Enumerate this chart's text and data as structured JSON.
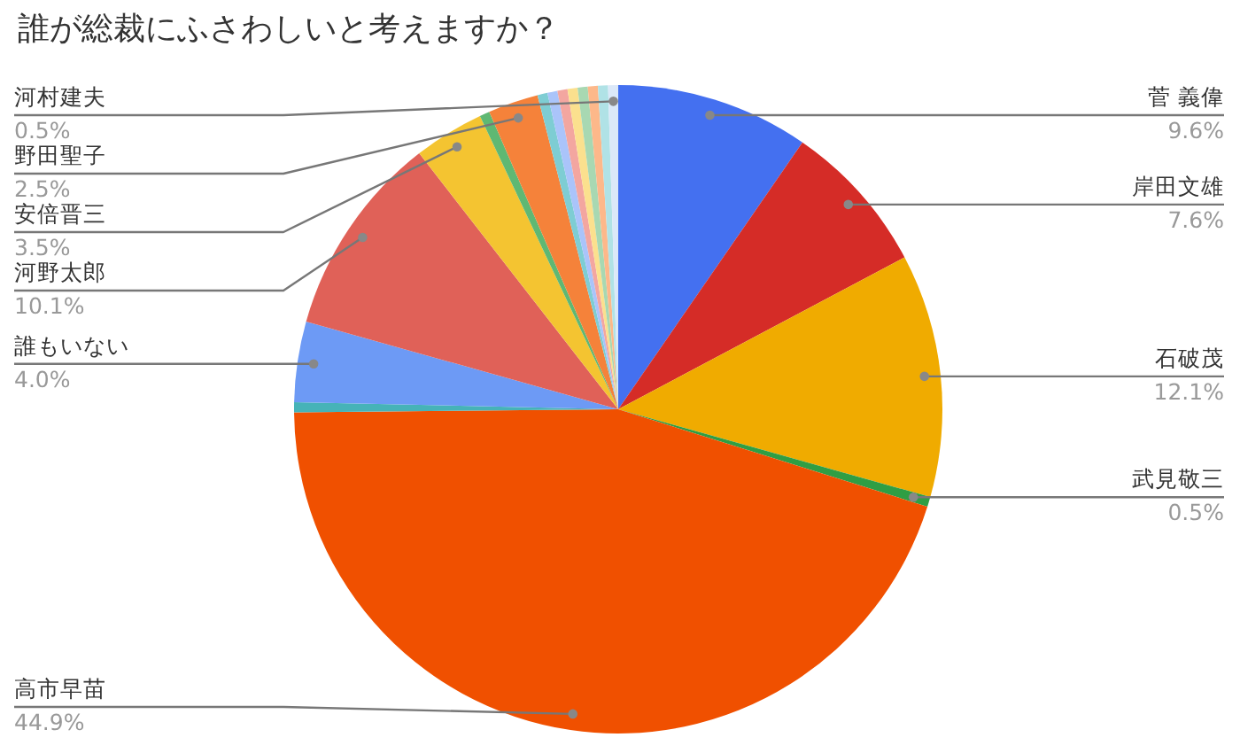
{
  "chart_data": {
    "type": "pie",
    "title": "誰が総裁にふさわしいと考えますか？",
    "categories": [
      "菅 義偉",
      "岸田文雄",
      "石破茂",
      "武見敬三",
      "高市早苗",
      null,
      "誰もいない",
      "河野太郎",
      "安倍晋三",
      null,
      "野田聖子",
      null,
      null,
      null,
      null,
      null,
      null,
      null,
      "河村建夫"
    ],
    "values": [
      9.6,
      7.6,
      12.1,
      0.5,
      44.9,
      0.5,
      4.0,
      10.1,
      3.5,
      0.5,
      2.5,
      0.5,
      0.5,
      0.5,
      0.5,
      0.5,
      0.5,
      0.5,
      0.5
    ],
    "colors": [
      "#4470f0",
      "#d52c27",
      "#f0ab00",
      "#2f9e44",
      "#f05000",
      "#46b3b8",
      "#6d9af5",
      "#e06158",
      "#f4c431",
      "#5fb873",
      "#f5823a",
      "#7ecdd3",
      "#aac4fa",
      "#f3a6a0",
      "#fbe08e",
      "#a8d8b2",
      "#fdb88a",
      "#b0e2e6",
      "#dbe8f8"
    ],
    "value_labels": [
      "9.6%",
      "7.6%",
      "12.1%",
      "0.5%",
      "44.9%",
      null,
      "4.0%",
      "10.1%",
      "3.5%",
      null,
      "2.5%",
      null,
      null,
      null,
      null,
      null,
      null,
      null,
      "0.5%"
    ]
  }
}
